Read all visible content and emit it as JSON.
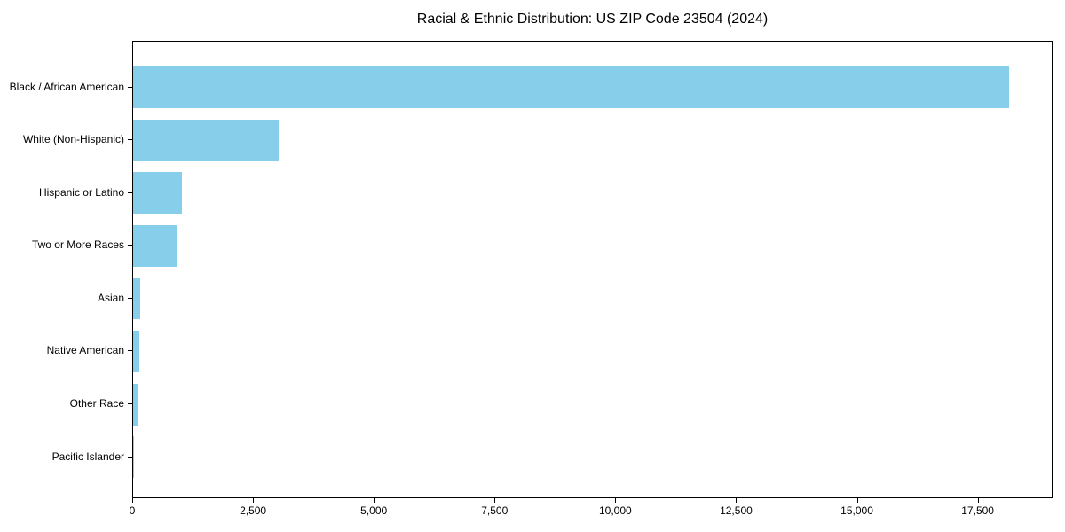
{
  "title": "Racial & Ethnic Distribution: US ZIP Code 23504 (2024)",
  "chart_data": {
    "type": "bar",
    "orientation": "horizontal",
    "title": "Racial & Ethnic Distribution: US ZIP Code 23504 (2024)",
    "xlabel": "",
    "ylabel": "",
    "categories": [
      "Black / African American",
      "White (Non-Hispanic)",
      "Hispanic or Latino",
      "Two or More Races",
      "Asian",
      "Native American",
      "Other Race",
      "Pacific Islander"
    ],
    "values": [
      18140,
      3015,
      1005,
      915,
      145,
      135,
      115,
      15
    ],
    "xlim": [
      0,
      19050
    ],
    "xticks": [
      0,
      2500,
      5000,
      7500,
      10000,
      12500,
      15000,
      17500
    ],
    "xtick_labels": [
      "0",
      "2,500",
      "5,000",
      "7,500",
      "10,000",
      "12,500",
      "15,000",
      "17,500"
    ],
    "bar_color": "#87CEEB",
    "grid": false,
    "legend": null,
    "background_color": "#ffffff",
    "frame_color": "#000000"
  }
}
